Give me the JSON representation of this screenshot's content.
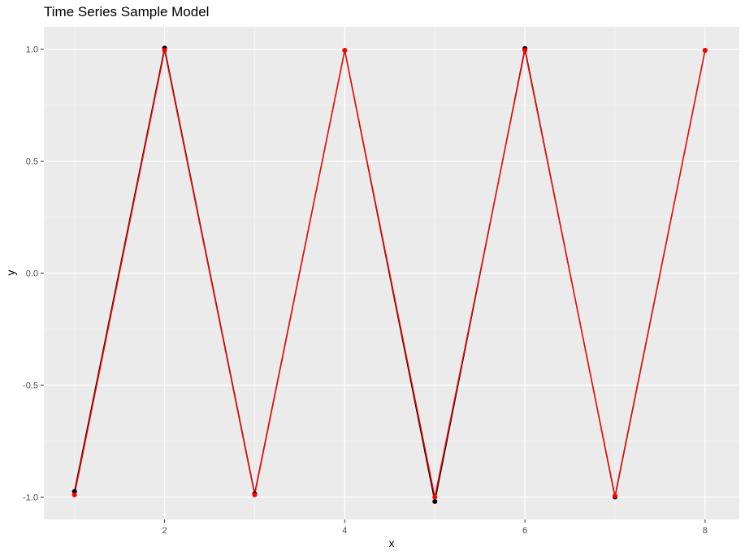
{
  "chart_data": {
    "type": "line",
    "title": "Time Series Sample Model",
    "xlabel": "x",
    "ylabel": "y",
    "xlim": [
      0.66,
      8.38
    ],
    "ylim": [
      -1.1,
      1.1
    ],
    "x_ticks": [
      2,
      4,
      6,
      8
    ],
    "x_tick_labels": [
      "2",
      "4",
      "6",
      "8"
    ],
    "y_ticks": [
      -1.0,
      -0.5,
      0.0,
      0.5,
      1.0
    ],
    "y_tick_labels": [
      "-1.0",
      "-0.5",
      "0.0",
      "0.5",
      "1.0"
    ],
    "grid": true,
    "series": [
      {
        "color": "#000000",
        "x": [
          1,
          2,
          3,
          4,
          5,
          6,
          7,
          8
        ],
        "values": [
          -0.975,
          1.005,
          -0.985,
          0.995,
          -1.02,
          1.003,
          -1.0,
          0.995
        ]
      },
      {
        "color": "#ff0000",
        "x": [
          1,
          2,
          3,
          4,
          5,
          6,
          7,
          8
        ],
        "values": [
          -0.99,
          0.995,
          -0.99,
          0.995,
          -1.0,
          0.995,
          -0.995,
          0.995
        ]
      }
    ]
  }
}
